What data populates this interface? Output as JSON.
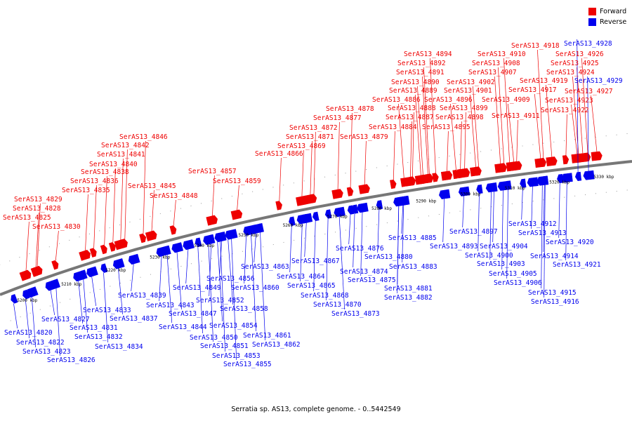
{
  "legend": {
    "forward_label": "Forward",
    "reverse_label": "Reverse",
    "forward_color": "#ee0000",
    "reverse_color": "#0000ee"
  },
  "caption": "Serratia sp. AS13, complete genome. - 0..5442549",
  "ticks": [
    "5200 kbp",
    "5210 kbp",
    "5220 kbp",
    "5230 kbp",
    "5240 kbp",
    "5250 kbp",
    "5260 kbp",
    "5270 kbp",
    "5280 kbp",
    "5290 kbp",
    "5300 kbp",
    "5310 kbp",
    "5320 kbp",
    "5330 kbp"
  ],
  "forward_genes": [
    "SerAS13_4825",
    "SerAS13_4828",
    "SerAS13_4829",
    "SerAS13_4830",
    "SerAS13_4835",
    "SerAS13_4836",
    "SerAS13_4838",
    "SerAS13_4840",
    "SerAS13_4841",
    "SerAS13_4842",
    "SerAS13_4846",
    "SerAS13_4845",
    "SerAS13_4848",
    "SerAS13_4857",
    "SerAS13_4859",
    "SerAS13_4866",
    "SerAS13_4869",
    "SerAS13_4871",
    "SerAS13_4872",
    "SerAS13_4877",
    "SerAS13_4878",
    "SerAS13_4879",
    "SerAS13_4884",
    "SerAS13_4886",
    "SerAS13_4887",
    "SerAS13_4888",
    "SerAS13_4889",
    "SerAS13_4890",
    "SerAS13_4891",
    "SerAS13_4892",
    "SerAS13_4894",
    "SerAS13_4895",
    "SerAS13_4896",
    "SerAS13_4898",
    "SerAS13_4899",
    "SerAS13_4901",
    "SerAS13_4902",
    "SerAS13_4907",
    "SerAS13_4908",
    "SerAS13_4909",
    "SerAS13_4910",
    "SerAS13_4911",
    "SerAS13_4917",
    "SerAS13_4918",
    "SerAS13_4919",
    "SerAS13_4922",
    "SerAS13_4923",
    "SerAS13_4924",
    "SerAS13_4925",
    "SerAS13_4926",
    "SerAS13_4927"
  ],
  "reverse_genes": [
    "SerAS13_4820",
    "SerAS13_4822",
    "SerAS13_4823",
    "SerAS13_4826",
    "SerAS13_4827",
    "SerAS13_4831",
    "SerAS13_4832",
    "SerAS13_4833",
    "SerAS13_4834",
    "SerAS13_4837",
    "SerAS13_4839",
    "SerAS13_4843",
    "SerAS13_4844",
    "SerAS13_4847",
    "SerAS13_4849",
    "SerAS13_4850",
    "SerAS13_4851",
    "SerAS13_4852",
    "SerAS13_4853",
    "SerAS13_4854",
    "SerAS13_4855",
    "SerAS13_4856",
    "SerAS13_4858",
    "SerAS13_4860",
    "SerAS13_4861",
    "SerAS13_4862",
    "SerAS13_4863",
    "SerAS13_4864",
    "SerAS13_4865",
    "SerAS13_4867",
    "SerAS13_4868",
    "SerAS13_4870",
    "SerAS13_4873",
    "SerAS13_4874",
    "SerAS13_4875",
    "SerAS13_4876",
    "SerAS13_4880",
    "SerAS13_4881",
    "SerAS13_4882",
    "SerAS13_4883",
    "SerAS13_4885",
    "SerAS13_4893",
    "SerAS13_4897",
    "SerAS13_4900",
    "SerAS13_4903",
    "SerAS13_4904",
    "SerAS13_4905",
    "SerAS13_4906",
    "SerAS13_4912",
    "SerAS13_4913",
    "SerAS13_4914",
    "SerAS13_4915",
    "SerAS13_4916",
    "SerAS13_4920",
    "SerAS13_4921",
    "SerAS13_4928",
    "SerAS13_4929"
  ]
}
